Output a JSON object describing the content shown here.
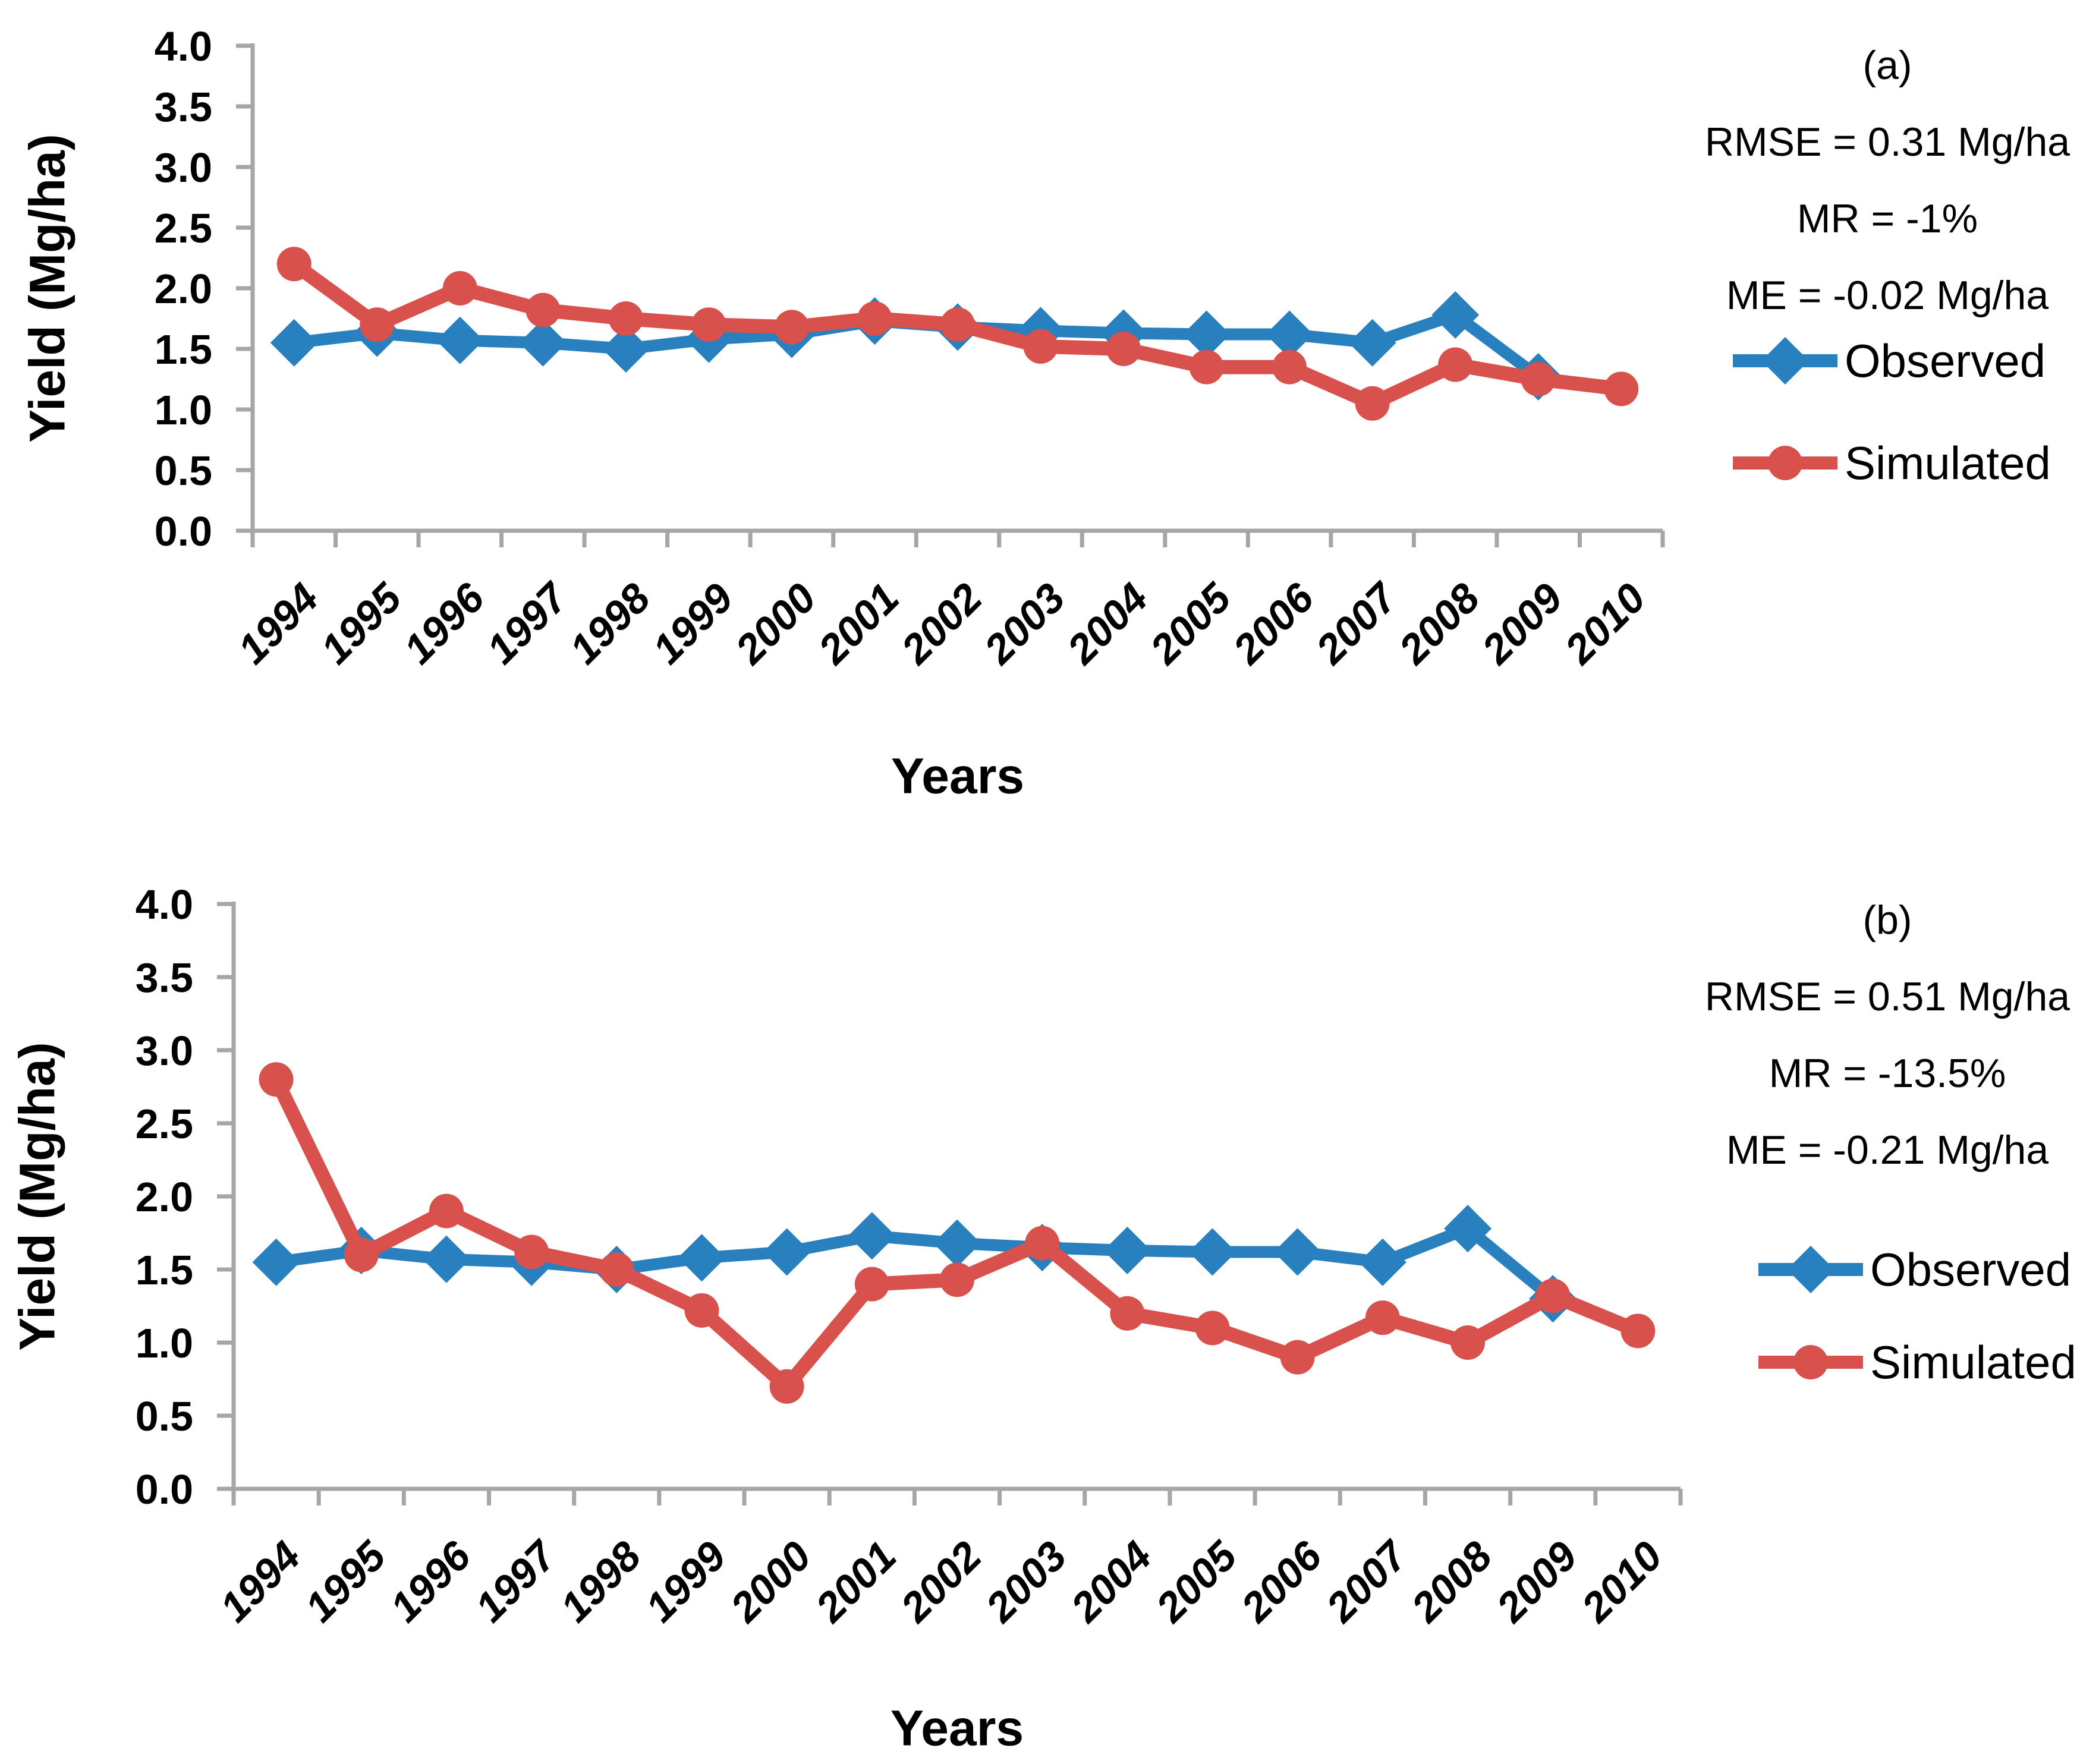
{
  "colors": {
    "observed": "#2980BE",
    "simulated": "#D9514C",
    "axis": "#A6A6A6",
    "text": "#000000",
    "background": "#FFFFFF"
  },
  "chart_data": [
    {
      "id": "a",
      "type": "line",
      "panel_label": "(a)",
      "stats": [
        "RMSE = 0.31 Mg/ha",
        "MR = -1%",
        "ME = -0.02 Mg/ha"
      ],
      "xlabel": "Years",
      "ylabel": "Yield (Mg/ha)",
      "ylim": [
        0.0,
        4.0
      ],
      "ytick_labels": [
        "4.0",
        "3.5",
        "3.0",
        "2.5",
        "2.0",
        "1.5",
        "1.0",
        "0.5",
        "0.0"
      ],
      "categories": [
        "1994",
        "1995",
        "1996",
        "1997",
        "1998",
        "1999",
        "2000",
        "2001",
        "2002",
        "2003",
        "2004",
        "2005",
        "2006",
        "2007",
        "2008",
        "2009",
        "2010"
      ],
      "grid": false,
      "legend_position": "right",
      "series": [
        {
          "name": "Observed",
          "marker": "diamond",
          "color": "#2980BE",
          "values": [
            1.55,
            1.63,
            1.57,
            1.55,
            1.5,
            1.58,
            1.62,
            1.73,
            1.68,
            1.65,
            1.63,
            1.62,
            1.62,
            1.55,
            1.78,
            1.27,
            null
          ]
        },
        {
          "name": "Simulated",
          "marker": "circle",
          "color": "#D9514C",
          "values": [
            2.2,
            1.7,
            2.0,
            1.82,
            1.75,
            1.7,
            1.68,
            1.75,
            1.7,
            1.52,
            1.5,
            1.35,
            1.35,
            1.05,
            1.37,
            1.25,
            1.17
          ]
        }
      ]
    },
    {
      "id": "b",
      "type": "line",
      "panel_label": "(b)",
      "stats": [
        "RMSE = 0.51 Mg/ha",
        "MR = -13.5%",
        "ME = -0.21 Mg/ha"
      ],
      "xlabel": "Years",
      "ylabel": "Yield (Mg/ha)",
      "ylim": [
        0.0,
        4.0
      ],
      "ytick_labels": [
        "4.0",
        "3.5",
        "3.0",
        "2.5",
        "2.0",
        "1.5",
        "1.0",
        "0.5",
        "0.0"
      ],
      "categories": [
        "1994",
        "1995",
        "1996",
        "1997",
        "1998",
        "1999",
        "2000",
        "2001",
        "2002",
        "2003",
        "2004",
        "2005",
        "2006",
        "2007",
        "2008",
        "2009",
        "2010"
      ],
      "grid": false,
      "legend_position": "right",
      "series": [
        {
          "name": "Observed",
          "marker": "diamond",
          "color": "#2980BE",
          "values": [
            1.55,
            1.63,
            1.57,
            1.55,
            1.5,
            1.58,
            1.62,
            1.73,
            1.68,
            1.65,
            1.63,
            1.62,
            1.62,
            1.55,
            1.78,
            1.3,
            null
          ]
        },
        {
          "name": "Simulated",
          "marker": "circle",
          "color": "#D9514C",
          "values": [
            2.8,
            1.6,
            1.9,
            1.62,
            1.5,
            1.22,
            0.7,
            1.4,
            1.43,
            1.68,
            1.2,
            1.1,
            0.9,
            1.17,
            1.0,
            1.32,
            1.08
          ]
        }
      ]
    }
  ]
}
